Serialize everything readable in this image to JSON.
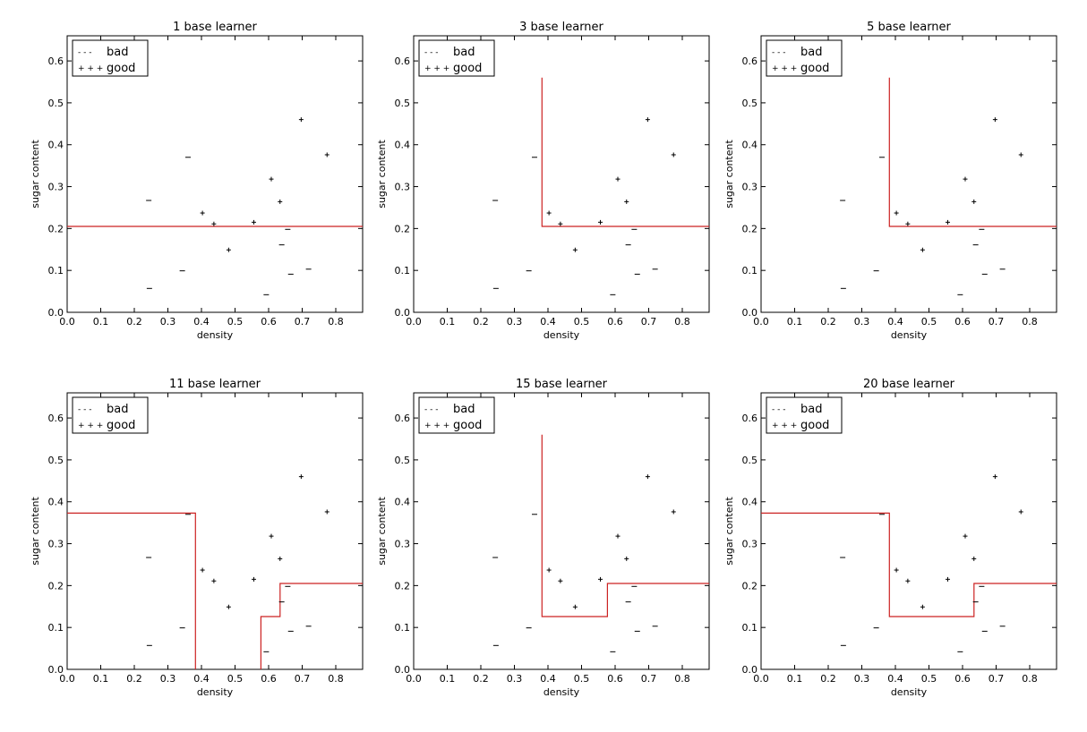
{
  "chart_data": [
    {
      "type": "scatter",
      "title": "1 base learner",
      "xlabel": "density",
      "ylabel": "sugar content",
      "xlim": [
        0,
        0.88
      ],
      "ylim": [
        0,
        0.66
      ],
      "xticks": [
        "0.0",
        "0.1",
        "0.2",
        "0.3",
        "0.4",
        "0.5",
        "0.6",
        "0.7",
        "0.8"
      ],
      "yticks": [
        "0.0",
        "0.1",
        "0.2",
        "0.3",
        "0.4",
        "0.5",
        "0.6"
      ],
      "legend": {
        "placement": "top-left",
        "entries": [
          {
            "marker": "- - -",
            "label": "bad"
          },
          {
            "marker": "+ + +",
            "label": "good"
          }
        ]
      },
      "series": [
        {
          "name": "bad",
          "marker": "-",
          "x": [
            0.243,
            0.245,
            0.343,
            0.36,
            0.593,
            0.639,
            0.657,
            0.666,
            0.719
          ],
          "y": [
            0.267,
            0.057,
            0.099,
            0.37,
            0.042,
            0.161,
            0.198,
            0.091,
            0.103
          ]
        },
        {
          "name": "good",
          "marker": "+",
          "x": [
            0.403,
            0.437,
            0.481,
            0.556,
            0.608,
            0.634,
            0.697,
            0.774
          ],
          "y": [
            0.237,
            0.211,
            0.149,
            0.215,
            0.318,
            0.264,
            0.46,
            0.376
          ]
        }
      ],
      "boundary": [
        [
          [
            0,
            0.205
          ],
          [
            0.88,
            0.205
          ]
        ]
      ]
    },
    {
      "type": "scatter",
      "title": "3 base learner",
      "xlabel": "density",
      "ylabel": "sugar content",
      "xlim": [
        0,
        0.88
      ],
      "ylim": [
        0,
        0.66
      ],
      "xticks": [
        "0.0",
        "0.1",
        "0.2",
        "0.3",
        "0.4",
        "0.5",
        "0.6",
        "0.7",
        "0.8"
      ],
      "yticks": [
        "0.0",
        "0.1",
        "0.2",
        "0.3",
        "0.4",
        "0.5",
        "0.6"
      ],
      "legend": {
        "placement": "top-left",
        "entries": [
          {
            "marker": "- - -",
            "label": "bad"
          },
          {
            "marker": "+ + +",
            "label": "good"
          }
        ]
      },
      "series": [
        {
          "name": "bad",
          "marker": "-",
          "x": [
            0.243,
            0.245,
            0.343,
            0.36,
            0.593,
            0.639,
            0.657,
            0.666,
            0.719
          ],
          "y": [
            0.267,
            0.057,
            0.099,
            0.37,
            0.042,
            0.161,
            0.198,
            0.091,
            0.103
          ]
        },
        {
          "name": "good",
          "marker": "+",
          "x": [
            0.403,
            0.437,
            0.481,
            0.556,
            0.608,
            0.634,
            0.697,
            0.774
          ],
          "y": [
            0.237,
            0.211,
            0.149,
            0.215,
            0.318,
            0.264,
            0.46,
            0.376
          ]
        }
      ],
      "boundary": [
        [
          [
            0.382,
            0.56
          ],
          [
            0.382,
            0.205
          ],
          [
            0.88,
            0.205
          ]
        ]
      ]
    },
    {
      "type": "scatter",
      "title": "5 base learner",
      "xlabel": "density",
      "ylabel": "sugar content",
      "xlim": [
        0,
        0.88
      ],
      "ylim": [
        0,
        0.66
      ],
      "xticks": [
        "0.0",
        "0.1",
        "0.2",
        "0.3",
        "0.4",
        "0.5",
        "0.6",
        "0.7",
        "0.8"
      ],
      "yticks": [
        "0.0",
        "0.1",
        "0.2",
        "0.3",
        "0.4",
        "0.5",
        "0.6"
      ],
      "legend": {
        "placement": "top-left",
        "entries": [
          {
            "marker": "- - -",
            "label": "bad"
          },
          {
            "marker": "+ + +",
            "label": "good"
          }
        ]
      },
      "series": [
        {
          "name": "bad",
          "marker": "-",
          "x": [
            0.243,
            0.245,
            0.343,
            0.36,
            0.593,
            0.639,
            0.657,
            0.666,
            0.719
          ],
          "y": [
            0.267,
            0.057,
            0.099,
            0.37,
            0.042,
            0.161,
            0.198,
            0.091,
            0.103
          ]
        },
        {
          "name": "good",
          "marker": "+",
          "x": [
            0.403,
            0.437,
            0.481,
            0.556,
            0.608,
            0.634,
            0.697,
            0.774
          ],
          "y": [
            0.237,
            0.211,
            0.149,
            0.215,
            0.318,
            0.264,
            0.46,
            0.376
          ]
        }
      ],
      "boundary": [
        [
          [
            0.382,
            0.56
          ],
          [
            0.382,
            0.205
          ],
          [
            0.88,
            0.205
          ]
        ]
      ]
    },
    {
      "type": "scatter",
      "title": "11 base learner",
      "xlabel": "density",
      "ylabel": "sugar content",
      "xlim": [
        0,
        0.88
      ],
      "ylim": [
        0,
        0.66
      ],
      "xticks": [
        "0.0",
        "0.1",
        "0.2",
        "0.3",
        "0.4",
        "0.5",
        "0.6",
        "0.7",
        "0.8"
      ],
      "yticks": [
        "0.0",
        "0.1",
        "0.2",
        "0.3",
        "0.4",
        "0.5",
        "0.6"
      ],
      "legend": {
        "placement": "top-left",
        "entries": [
          {
            "marker": "- - -",
            "label": "bad"
          },
          {
            "marker": "+ + +",
            "label": "good"
          }
        ]
      },
      "series": [
        {
          "name": "bad",
          "marker": "-",
          "x": [
            0.243,
            0.245,
            0.343,
            0.36,
            0.593,
            0.639,
            0.657,
            0.666,
            0.719
          ],
          "y": [
            0.267,
            0.057,
            0.099,
            0.37,
            0.042,
            0.161,
            0.198,
            0.091,
            0.103
          ]
        },
        {
          "name": "good",
          "marker": "+",
          "x": [
            0.403,
            0.437,
            0.481,
            0.556,
            0.608,
            0.634,
            0.697,
            0.774
          ],
          "y": [
            0.237,
            0.211,
            0.149,
            0.215,
            0.318,
            0.264,
            0.46,
            0.376
          ]
        }
      ],
      "boundary": [
        [
          [
            0,
            0.373
          ],
          [
            0.382,
            0.373
          ],
          [
            0.382,
            0
          ]
        ],
        [
          [
            0.577,
            0
          ],
          [
            0.577,
            0.126
          ],
          [
            0.634,
            0.126
          ],
          [
            0.634,
            0.205
          ],
          [
            0.88,
            0.205
          ]
        ]
      ]
    },
    {
      "type": "scatter",
      "title": "15 base learner",
      "xlabel": "density",
      "ylabel": "sugar content",
      "xlim": [
        0,
        0.88
      ],
      "ylim": [
        0,
        0.66
      ],
      "xticks": [
        "0.0",
        "0.1",
        "0.2",
        "0.3",
        "0.4",
        "0.5",
        "0.6",
        "0.7",
        "0.8"
      ],
      "yticks": [
        "0.0",
        "0.1",
        "0.2",
        "0.3",
        "0.4",
        "0.5",
        "0.6"
      ],
      "legend": {
        "placement": "top-left",
        "entries": [
          {
            "marker": "- - -",
            "label": "bad"
          },
          {
            "marker": "+ + +",
            "label": "good"
          }
        ]
      },
      "series": [
        {
          "name": "bad",
          "marker": "-",
          "x": [
            0.243,
            0.245,
            0.343,
            0.36,
            0.593,
            0.639,
            0.657,
            0.666,
            0.719
          ],
          "y": [
            0.267,
            0.057,
            0.099,
            0.37,
            0.042,
            0.161,
            0.198,
            0.091,
            0.103
          ]
        },
        {
          "name": "good",
          "marker": "+",
          "x": [
            0.403,
            0.437,
            0.481,
            0.556,
            0.608,
            0.634,
            0.697,
            0.774
          ],
          "y": [
            0.237,
            0.211,
            0.149,
            0.215,
            0.318,
            0.264,
            0.46,
            0.376
          ]
        }
      ],
      "boundary": [
        [
          [
            0.382,
            0.56
          ],
          [
            0.382,
            0.126
          ],
          [
            0.577,
            0.126
          ],
          [
            0.577,
            0.205
          ],
          [
            0.88,
            0.205
          ]
        ]
      ]
    },
    {
      "type": "scatter",
      "title": "20 base learner",
      "xlabel": "density",
      "ylabel": "sugar content",
      "xlim": [
        0,
        0.88
      ],
      "ylim": [
        0,
        0.66
      ],
      "xticks": [
        "0.0",
        "0.1",
        "0.2",
        "0.3",
        "0.4",
        "0.5",
        "0.6",
        "0.7",
        "0.8"
      ],
      "yticks": [
        "0.0",
        "0.1",
        "0.2",
        "0.3",
        "0.4",
        "0.5",
        "0.6"
      ],
      "legend": {
        "placement": "top-left",
        "entries": [
          {
            "marker": "- - -",
            "label": "bad"
          },
          {
            "marker": "+ + +",
            "label": "good"
          }
        ]
      },
      "series": [
        {
          "name": "bad",
          "marker": "-",
          "x": [
            0.243,
            0.245,
            0.343,
            0.36,
            0.593,
            0.639,
            0.657,
            0.666,
            0.719
          ],
          "y": [
            0.267,
            0.057,
            0.099,
            0.37,
            0.042,
            0.161,
            0.198,
            0.091,
            0.103
          ]
        },
        {
          "name": "good",
          "marker": "+",
          "x": [
            0.403,
            0.437,
            0.481,
            0.556,
            0.608,
            0.634,
            0.697,
            0.774
          ],
          "y": [
            0.237,
            0.211,
            0.149,
            0.215,
            0.318,
            0.264,
            0.46,
            0.376
          ]
        }
      ],
      "boundary": [
        [
          [
            0,
            0.373
          ],
          [
            0.382,
            0.373
          ],
          [
            0.382,
            0.126
          ],
          [
            0.634,
            0.126
          ],
          [
            0.634,
            0.205
          ],
          [
            0.88,
            0.205
          ]
        ]
      ]
    }
  ],
  "colors": {
    "boundary": "#cc2222",
    "marker": "#000000",
    "axes": "#000000"
  }
}
